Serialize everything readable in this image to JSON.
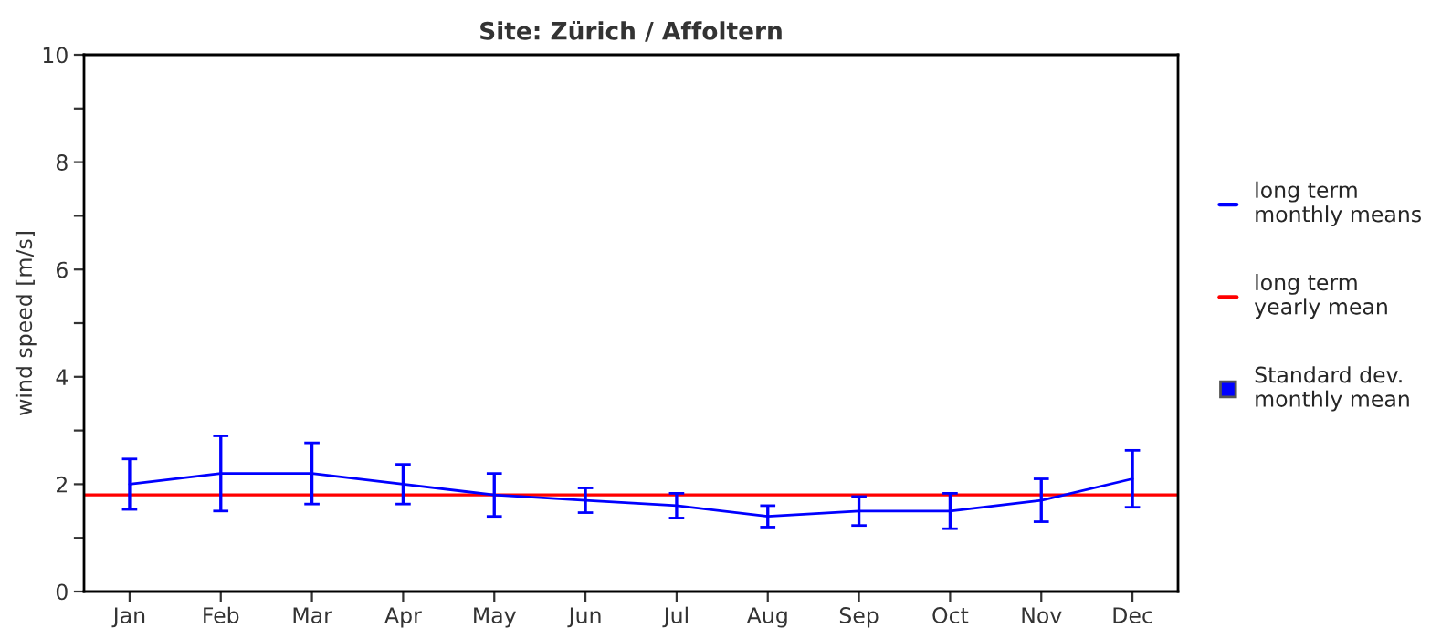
{
  "chart_data": {
    "type": "line",
    "title": "Site: Zürich / Affoltern",
    "ylabel": "wind speed [m/s]",
    "categories": [
      "Jan",
      "Feb",
      "Mar",
      "Apr",
      "May",
      "Jun",
      "Jul",
      "Aug",
      "Sep",
      "Oct",
      "Nov",
      "Dec"
    ],
    "series": [
      {
        "name": "long term\nmonthly means",
        "color": "#0000ff",
        "values": [
          2.0,
          2.2,
          2.2,
          2.0,
          1.8,
          1.7,
          1.6,
          1.4,
          1.5,
          1.5,
          1.7,
          2.1
        ],
        "errors": [
          [
            1.53,
            2.47
          ],
          [
            1.5,
            2.9
          ],
          [
            1.63,
            2.77
          ],
          [
            1.63,
            2.37
          ],
          [
            1.4,
            2.2
          ],
          [
            1.47,
            1.93
          ],
          [
            1.37,
            1.83
          ],
          [
            1.2,
            1.6
          ],
          [
            1.23,
            1.77
          ],
          [
            1.17,
            1.83
          ],
          [
            1.3,
            2.1
          ],
          [
            1.57,
            2.63
          ]
        ]
      }
    ],
    "ref_lines": [
      {
        "axis": "y",
        "value": 1.8,
        "label": "long term\nyearly mean",
        "color": "#ff0000"
      }
    ],
    "annotations": [
      "Standard dev.\nmonthly mean"
    ],
    "ylim": [
      0,
      10
    ],
    "yticks": [
      0,
      {
        "value": 1,
        "label": null
      },
      2,
      {
        "value": 3,
        "label": null
      },
      4,
      {
        "value": 5,
        "label": null
      },
      6,
      {
        "value": 7,
        "label": null
      },
      8,
      {
        "value": 9,
        "label": null
      },
      10
    ],
    "legend": "right",
    "grid": false,
    "marker": "none",
    "line_style": "solid"
  }
}
